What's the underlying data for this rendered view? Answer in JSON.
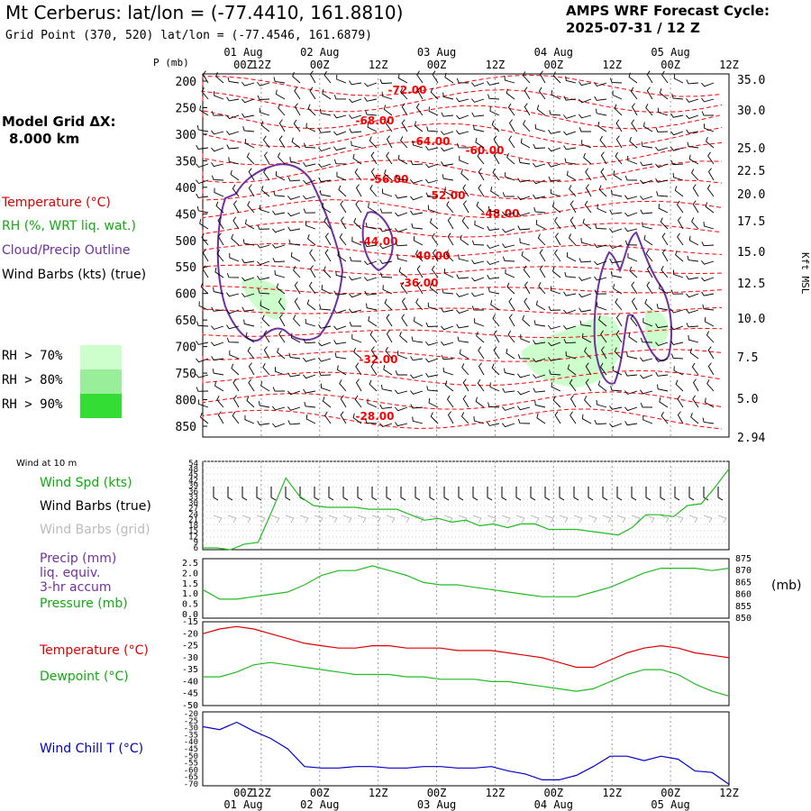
{
  "header": {
    "title": "Mt Cerberus:  lat/lon = (-77.4410, 161.8810)",
    "subtitle": "Grid Point (370, 520) lat/lon = (-77.4546, 161.6879)",
    "cycle_line1": "AMPS WRF Forecast Cycle:",
    "cycle_line2": "2025-07-31 / 12  Z",
    "grid_line1": "Model Grid ΔX:",
    "grid_line2": "8.000 km"
  },
  "legend": {
    "temperature": "Temperature (°C)",
    "rh": "RH (%, WRT liq. wat.)",
    "cloud": "Cloud/Precip Outline",
    "wind": "Wind Barbs (kts) (true)",
    "rh70": "RH > 70%",
    "rh80": "RH > 80%",
    "rh90": "RH > 90%",
    "colors": {
      "temperature": "#ff0000",
      "rh": "#00aa00",
      "cloud": "#7030a0",
      "rh70": "#ccffcc",
      "rh80": "#99ee99",
      "rh90": "#33dd33"
    }
  },
  "panel_labels": {
    "wind_at_10m": "Wind at 10 m",
    "wind_spd": "Wind Spd (kts)",
    "wind_barbs_true": "Wind Barbs (true)",
    "wind_barbs_grid": "Wind Barbs (grid)",
    "precip": "Precip (mm)",
    "liq": "liq. equiv.",
    "accum": "3-hr accum",
    "pressure": "Pressure (mb)",
    "pressure_unit": "(mb)",
    "temperature": "Temperature (°C)",
    "dewpoint": "Dewpoint (°C)",
    "wind_chill": "Wind Chill T (°C)",
    "p_axis": "P (mb)",
    "kft_axis": "Kft MSL"
  },
  "chart_data": [
    {
      "type": "contour",
      "name": "time-height",
      "x_ticks": [
        "00Z",
        "12Z",
        "00Z",
        "12Z",
        "00Z",
        "12Z",
        "00Z",
        "12Z",
        "00Z",
        "12Z"
      ],
      "day_labels": [
        "01 Aug",
        "02 Aug",
        "03 Aug",
        "04 Aug",
        "05 Aug"
      ],
      "bottom_day_labels": [
        "01 Aug",
        "02 Aug",
        "03 Aug",
        "04 Aug",
        "05 Aug"
      ],
      "pressure_ticks": [
        200,
        250,
        300,
        350,
        400,
        450,
        500,
        550,
        600,
        650,
        700,
        750,
        800,
        850
      ],
      "kft_ticks": [
        "35.0",
        "30.0",
        "25.0",
        "22.5",
        "20.0",
        "17.5",
        "15.0",
        "12.5",
        "10.0",
        "7.5",
        "5.0",
        "2.94"
      ],
      "temp_labels": [
        "-72.00",
        "-68.00",
        "-64.00",
        "-60.00",
        "-56.00",
        "-52.00",
        "-48.00",
        "-44.00",
        "-40.00",
        "-36.00",
        "-32.00",
        "-28.00"
      ]
    },
    {
      "type": "line",
      "name": "wind-speed",
      "yticks": [
        "54",
        "48",
        "45",
        "42",
        "39",
        "36",
        "33",
        "30",
        "27",
        "24",
        "21",
        "18",
        "15",
        "12",
        "9",
        "6"
      ],
      "values": [
        7,
        7,
        6,
        9,
        10,
        27,
        45,
        35,
        30,
        29,
        29,
        29,
        28,
        28,
        28,
        25,
        22,
        23,
        21,
        22,
        19,
        20,
        18,
        20,
        20,
        17,
        17,
        17,
        16,
        15,
        14,
        18,
        25,
        25,
        24,
        30,
        31,
        40,
        50
      ]
    },
    {
      "type": "line",
      "name": "precip-pressure",
      "yticks_left": [
        "2.5",
        "2.0",
        "1.5",
        "1.0",
        "0.5",
        "0.0"
      ],
      "yticks_right": [
        "875",
        "870",
        "865",
        "860",
        "855",
        "850"
      ],
      "series": [
        {
          "name": "Pressure",
          "values": [
            862,
            858,
            858,
            859,
            860,
            861,
            864,
            868,
            870,
            870,
            872,
            870,
            868,
            865,
            864,
            864,
            863,
            862,
            861,
            860,
            859,
            859,
            859,
            861,
            863,
            866,
            869,
            871,
            871,
            871,
            870,
            871
          ]
        },
        {
          "name": "Precip",
          "values": [
            0,
            0,
            0,
            0,
            0,
            0,
            0,
            0,
            0,
            0,
            0,
            0,
            0,
            0,
            0,
            0,
            0,
            0,
            0,
            0,
            0,
            0,
            0,
            0,
            0,
            0,
            0,
            0,
            0,
            0,
            0,
            0
          ]
        }
      ]
    },
    {
      "type": "line",
      "name": "temperature-dewpoint",
      "yticks": [
        "-15",
        "-20",
        "-25",
        "-30",
        "-35",
        "-40",
        "-45",
        "-50"
      ],
      "series": [
        {
          "name": "Temperature",
          "values": [
            -20,
            -18,
            -17,
            -18,
            -20,
            -22,
            -24,
            -25,
            -26,
            -26,
            -25,
            -25,
            -26,
            -26,
            -26,
            -27,
            -27,
            -27,
            -28,
            -29,
            -30,
            -32,
            -34,
            -34,
            -31,
            -28,
            -26,
            -25,
            -26,
            -28,
            -29,
            -30
          ]
        },
        {
          "name": "Dewpoint",
          "values": [
            -38,
            -38,
            -36,
            -33,
            -32,
            -33,
            -34,
            -35,
            -36,
            -37,
            -37,
            -37,
            -38,
            -38,
            -39,
            -39,
            -39,
            -40,
            -40,
            -41,
            -42,
            -43,
            -44,
            -43,
            -40,
            -37,
            -35,
            -35,
            -37,
            -41,
            -44,
            -46
          ]
        }
      ]
    },
    {
      "type": "line",
      "name": "wind-chill",
      "yticks": [
        "-20",
        "-25",
        "-30",
        "-35",
        "-40",
        "-45",
        "-50",
        "-55",
        "-60",
        "-65",
        "-70"
      ],
      "values": [
        -30,
        -32,
        -27,
        -33,
        -38,
        -45,
        -57,
        -58,
        -58,
        -57,
        -57,
        -58,
        -58,
        -57,
        -57,
        -58,
        -58,
        -57,
        -60,
        -62,
        -66,
        -66,
        -63,
        -57,
        -50,
        -50,
        -53,
        -50,
        -52,
        -60,
        -61,
        -69
      ]
    }
  ]
}
